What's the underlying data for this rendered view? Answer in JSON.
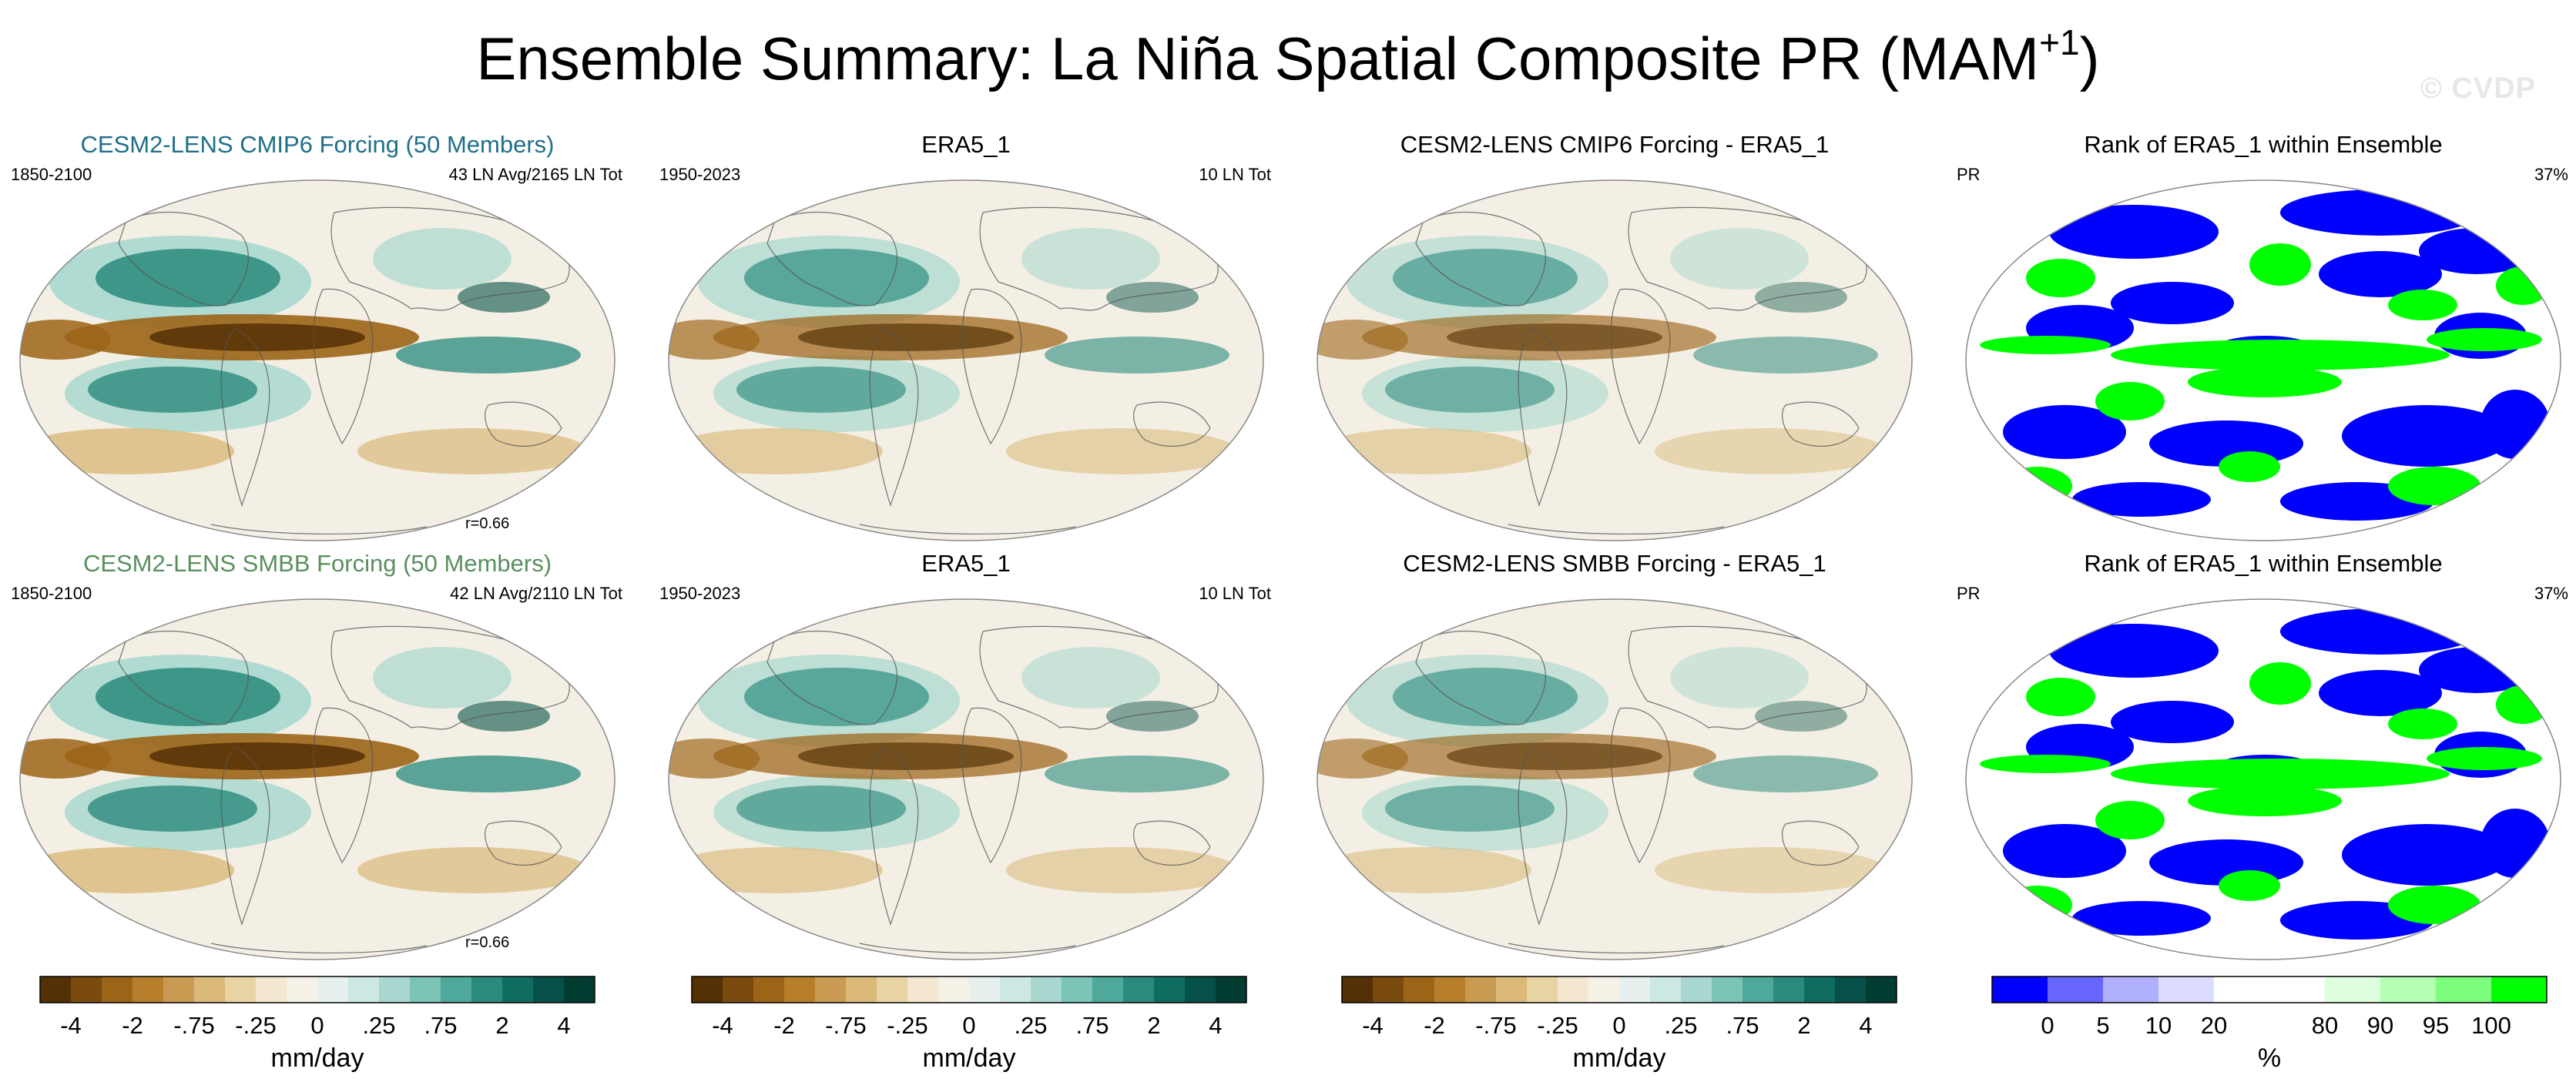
{
  "figure": {
    "title_main": "Ensemble Summary: La Niña Spatial Composite PR (MAM",
    "title_sup": "+1",
    "title_end": ")",
    "watermark": "© CVDP"
  },
  "chart_data": [
    {
      "type": "heatmap",
      "title": "CESM2-LENS CMIP6 Forcing (50 Members)",
      "title_color": "#1f6f8b",
      "left_label": "1850-2100",
      "right_label": "43 LN Avg/2165 LN Tot",
      "pattern_correlation": "r=0.66",
      "variable": "PR",
      "units": "mm/day",
      "projection": "Robinson-like global map"
    },
    {
      "type": "heatmap",
      "title": "ERA5_1",
      "title_color": "#000000",
      "left_label": "1950-2023",
      "right_label": "10 LN Tot",
      "variable": "PR",
      "units": "mm/day"
    },
    {
      "type": "heatmap",
      "title": "CESM2-LENS CMIP6 Forcing - ERA5_1",
      "title_color": "#000000",
      "variable": "PR",
      "units": "mm/day"
    },
    {
      "type": "heatmap",
      "title": "Rank of ERA5_1 within Ensemble",
      "title_color": "#000000",
      "left_label": "PR",
      "right_label": "37%",
      "units": "%"
    },
    {
      "type": "heatmap",
      "title": "CESM2-LENS SMBB Forcing (50 Members)",
      "title_color": "#5a8f5e",
      "left_label": "1850-2100",
      "right_label": "42 LN Avg/2110 LN Tot",
      "pattern_correlation": "r=0.66",
      "variable": "PR",
      "units": "mm/day"
    },
    {
      "type": "heatmap",
      "title": "ERA5_1",
      "title_color": "#000000",
      "left_label": "1950-2023",
      "right_label": "10 LN Tot",
      "variable": "PR",
      "units": "mm/day"
    },
    {
      "type": "heatmap",
      "title": "CESM2-LENS SMBB Forcing - ERA5_1",
      "title_color": "#000000",
      "variable": "PR",
      "units": "mm/day"
    },
    {
      "type": "heatmap",
      "title": "Rank of ERA5_1 within Ensemble",
      "title_color": "#000000",
      "left_label": "PR",
      "right_label": "37%",
      "units": "%"
    }
  ],
  "colorbars": {
    "precip": {
      "label": "mm/day",
      "ticks": [
        "-4",
        "-2",
        "-.75",
        "-.25",
        "0",
        ".25",
        ".75",
        "2",
        "4"
      ],
      "colors": [
        "#543005",
        "#7a4a0d",
        "#9c6417",
        "#b77f2c",
        "#c99b52",
        "#dab979",
        "#e8d3a3",
        "#f3e8cf",
        "#f6f1e6",
        "#e6f1ef",
        "#cce8e3",
        "#a8d8cf",
        "#7cc4b6",
        "#4ea99a",
        "#2a8a7d",
        "#0f6c61",
        "#055048",
        "#003c30"
      ]
    },
    "rank": {
      "label": "%",
      "ticks": [
        "0",
        "5",
        "10",
        "20",
        "80",
        "90",
        "95",
        "100"
      ],
      "colors": [
        "#0000ff",
        "#6666ff",
        "#b0b0ff",
        "#dcdcff",
        "#ffffff",
        "#ffffff",
        "#ddffdd",
        "#b4ffb4",
        "#7dff7d",
        "#00ff00"
      ]
    }
  },
  "style": {
    "ocean_neutral": "#f4efe4",
    "brown": "#9c6417",
    "dark_brown": "#543005",
    "teal": "#2a8a7d",
    "dark_teal": "#055048",
    "light_teal": "#a8d8cf",
    "rank_blue": "#0000ff",
    "rank_green": "#00ff00"
  }
}
